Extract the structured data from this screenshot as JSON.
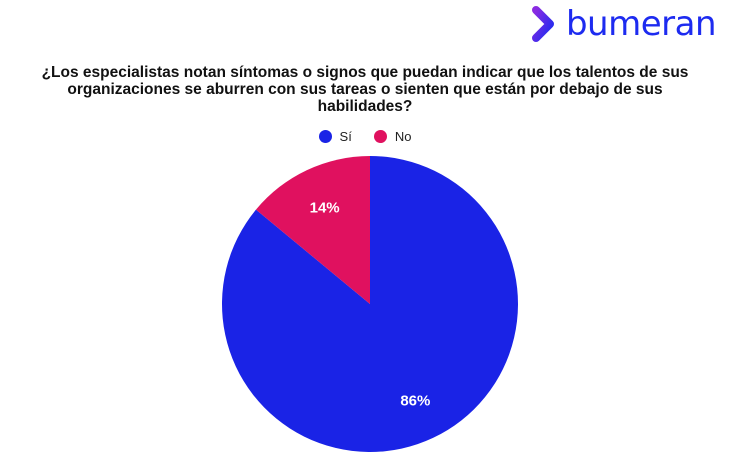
{
  "brand": {
    "name": "bumeran",
    "logo_color": "#1d2bf0",
    "logo_accent": "#8a2be2"
  },
  "chart_data": {
    "type": "pie",
    "title": "¿Los especialistas notan síntomas o signos que puedan indicar que los talentos de sus organizaciones se aburren con sus tareas o sienten que están por debajo de sus habilidades?",
    "categories": [
      "Sí",
      "No"
    ],
    "values": [
      86,
      14
    ],
    "labels": [
      "86%",
      "14%"
    ],
    "colors": [
      "#1a23e6",
      "#e0115f"
    ],
    "legend_position": "top"
  }
}
